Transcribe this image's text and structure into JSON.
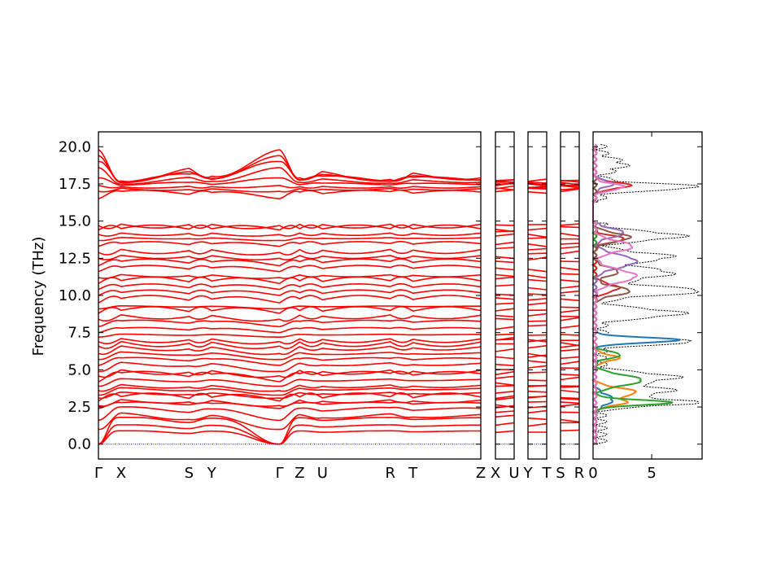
{
  "chart_data": {
    "type": "line",
    "description_note": "",
    "ylabel": "Frequency (THz)",
    "ylim": [
      -1.0,
      21.0
    ],
    "yticks": [
      {
        "value": 0.0,
        "label": "0.0"
      },
      {
        "value": 2.5,
        "label": "2.5"
      },
      {
        "value": 5.0,
        "label": "5.0"
      },
      {
        "value": 7.5,
        "label": "7.5"
      },
      {
        "value": 10.0,
        "label": "10.0"
      },
      {
        "value": 12.5,
        "label": "12.5"
      },
      {
        "value": 15.0,
        "label": "15.0"
      },
      {
        "value": 17.5,
        "label": "17.5"
      },
      {
        "value": 20.0,
        "label": "20.0"
      }
    ],
    "colors": {
      "bands": "#ff0000",
      "zero_line": "#0000cc",
      "total_dos": "#000000",
      "pdos": [
        "#1f77b4",
        "#ff7f0e",
        "#2ca02c",
        "#d62728",
        "#9467bd",
        "#8c564b",
        "#e377c2"
      ]
    },
    "panels": [
      {
        "segments": [
          {
            "labels": [
              "Γ",
              "X"
            ],
            "length": 0.62
          },
          {
            "labels": [
              "X",
              "S"
            ],
            "length": 1.85
          },
          {
            "labels": [
              "S",
              "Y"
            ],
            "length": 0.62
          },
          {
            "labels": [
              "Y",
              "Γ"
            ],
            "length": 1.85
          },
          {
            "labels": [
              "Γ",
              "Z"
            ],
            "length": 0.55
          },
          {
            "labels": [
              "Z",
              "U"
            ],
            "length": 0.62
          },
          {
            "labels": [
              "U",
              "R"
            ],
            "length": 1.85
          },
          {
            "labels": [
              "R",
              "T"
            ],
            "length": 0.62
          },
          {
            "labels": [
              "T",
              "Z"
            ],
            "length": 1.85
          }
        ],
        "tick_labels": [
          "Γ",
          "X",
          "S",
          "Y",
          "Γ",
          "Z",
          "U",
          "R",
          "T",
          "Z"
        ]
      },
      {
        "segments": [
          {
            "labels": [
              "X",
              "U"
            ],
            "length": 1
          }
        ],
        "tick_labels": [
          "X",
          "U"
        ]
      },
      {
        "segments": [
          {
            "labels": [
              "Y",
              "T"
            ],
            "length": 1
          }
        ],
        "tick_labels": [
          "Y",
          "T"
        ]
      },
      {
        "segments": [
          {
            "labels": [
              "S",
              "R"
            ],
            "length": 1
          }
        ],
        "tick_labels": [
          "S",
          "R"
        ]
      }
    ],
    "bands": {
      "levels_at_gamma": [
        0,
        0,
        0,
        1.0,
        1.6,
        2.4,
        2.6,
        2.9,
        3.1,
        3.3,
        3.6,
        3.9,
        4.2,
        4.6,
        4.9,
        5.3,
        5.7,
        6.1,
        6.6,
        6.9,
        7.2,
        7.5,
        7.9,
        8.4,
        8.8,
        9.1,
        9.5,
        10.0,
        10.4,
        10.8,
        11.2,
        11.6,
        12.0,
        12.5,
        12.9,
        13.3,
        13.7,
        14.1,
        14.4,
        14.7,
        16.5,
        17.0,
        17.4,
        17.9,
        18.6,
        19.0,
        19.4,
        19.8
      ],
      "levels_at_zone_edge": [
        0.9,
        1.3,
        1.8,
        2.1,
        2.5,
        2.8,
        3.0,
        3.2,
        3.5,
        3.8,
        4.0,
        4.4,
        4.8,
        5.0,
        5.5,
        5.8,
        6.2,
        6.6,
        6.9,
        7.1,
        7.4,
        7.8,
        8.3,
        8.7,
        9.0,
        9.3,
        9.8,
        10.2,
        10.6,
        11.0,
        11.4,
        11.9,
        12.3,
        12.7,
        13.1,
        13.5,
        13.9,
        14.2,
        14.5,
        14.8,
        17.0,
        17.2,
        17.3,
        17.4,
        17.5,
        17.6,
        17.6,
        17.7
      ]
    },
    "dos": {
      "xticks": [
        {
          "value": 0,
          "label": "0"
        },
        {
          "value": 5,
          "label": "5"
        }
      ],
      "xlim": [
        0,
        9.3
      ]
    }
  }
}
